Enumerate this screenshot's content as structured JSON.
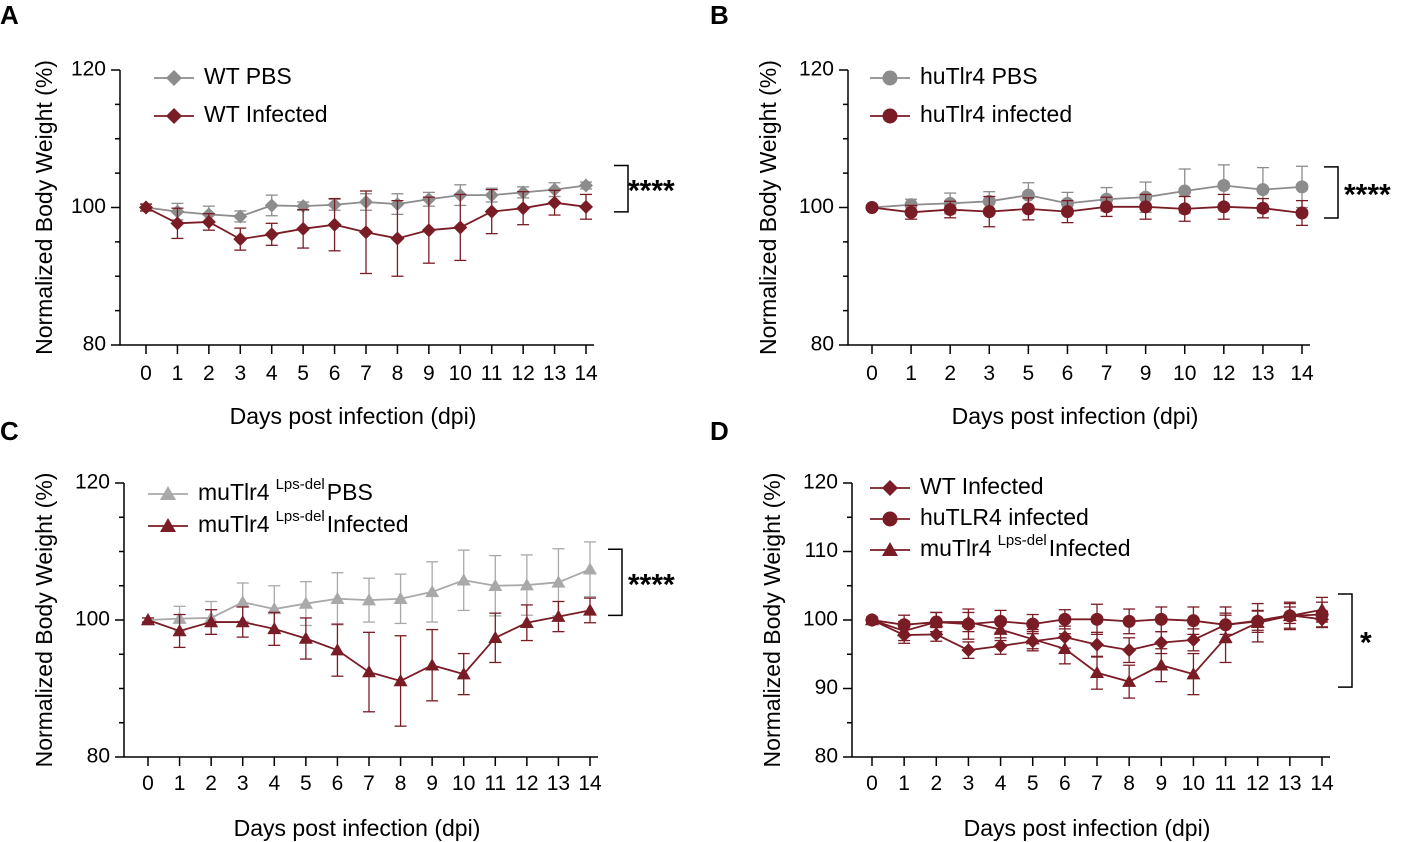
{
  "colors": {
    "gray_dark": "#8c8c8c",
    "gray_light": "#a9a9a9",
    "maroon": "#7a1c25",
    "axis": "#000000"
  },
  "chart_data": [
    {
      "panel": "A",
      "type": "line",
      "xlabel": "Days post infection (dpi)",
      "ylabel": "Normalized Body Weight (%)",
      "ylim": [
        80,
        120
      ],
      "yticks": [
        80,
        100,
        120
      ],
      "categories": [
        "0",
        "1",
        "2",
        "3",
        "4",
        "5",
        "6",
        "7",
        "8",
        "9",
        "10",
        "11",
        "12",
        "13",
        "14"
      ],
      "significance": "****",
      "legend_position": "top-left",
      "series": [
        {
          "name": "WT PBS",
          "marker": "diamond",
          "color": "#8c8c8c",
          "values": [
            100.0,
            99.4,
            99.0,
            98.7,
            100.3,
            100.2,
            100.4,
            100.8,
            100.5,
            101.2,
            101.8,
            101.8,
            102.2,
            102.6,
            103.2
          ],
          "errors": [
            0.5,
            1.2,
            1.2,
            0.8,
            1.5,
            0.6,
            0.8,
            1.2,
            1.5,
            1.0,
            1.5,
            1.0,
            0.8,
            1.0,
            0.5
          ]
        },
        {
          "name": "WT Infected",
          "marker": "diamond",
          "color": "#7a1c25",
          "values": [
            100.0,
            97.7,
            97.9,
            95.4,
            96.1,
            96.9,
            97.5,
            96.4,
            95.5,
            96.7,
            97.1,
            99.4,
            99.9,
            100.7,
            100.1
          ],
          "errors": [
            0.5,
            2.2,
            1.2,
            1.6,
            1.6,
            2.8,
            3.8,
            6.0,
            5.5,
            4.8,
            4.8,
            3.2,
            2.4,
            1.8,
            1.8
          ]
        }
      ]
    },
    {
      "panel": "B",
      "type": "line",
      "xlabel": "Days post infection (dpi)",
      "ylabel": "Normalized Body Weight (%)",
      "ylim": [
        80,
        120
      ],
      "yticks": [
        80,
        100,
        120
      ],
      "categories": [
        "0",
        "1",
        "2",
        "3",
        "5",
        "6",
        "7",
        "9",
        "10",
        "12",
        "13",
        "14"
      ],
      "significance": "****",
      "legend_position": "top-left",
      "series": [
        {
          "name": "huTlr4 PBS",
          "marker": "circle",
          "color": "#8c8c8c",
          "values": [
            100.0,
            100.4,
            100.6,
            100.9,
            101.8,
            100.6,
            101.2,
            101.5,
            102.4,
            103.2,
            102.6,
            103.0
          ],
          "errors": [
            0.3,
            0.8,
            1.5,
            1.4,
            1.8,
            1.6,
            1.7,
            2.2,
            3.2,
            3.0,
            3.2,
            3.0
          ]
        },
        {
          "name": "huTlr4 infected",
          "marker": "circle",
          "color": "#7a1c25",
          "values": [
            100.0,
            99.3,
            99.7,
            99.4,
            99.8,
            99.4,
            100.1,
            100.1,
            99.8,
            100.1,
            99.9,
            99.2
          ],
          "errors": [
            0.3,
            1.0,
            1.2,
            2.2,
            1.6,
            1.6,
            1.4,
            1.8,
            1.8,
            1.8,
            1.4,
            1.8
          ]
        }
      ]
    },
    {
      "panel": "C",
      "type": "line",
      "xlabel": "Days post infection (dpi)",
      "ylabel": "Normalized Body Weight (%)",
      "ylim": [
        80,
        120
      ],
      "yticks": [
        80,
        100,
        120
      ],
      "categories": [
        "0",
        "1",
        "2",
        "3",
        "4",
        "5",
        "6",
        "7",
        "8",
        "9",
        "10",
        "11",
        "12",
        "13",
        "14"
      ],
      "significance": "****",
      "legend_position": "top-left",
      "series": [
        {
          "name": "muTlr4",
          "name_sup": "Lps-del",
          "name_suffix": "PBS",
          "marker": "triangle",
          "color": "#a9a9a9",
          "values": [
            100.0,
            100.2,
            100.3,
            102.6,
            101.6,
            102.4,
            103.1,
            102.9,
            103.1,
            104.1,
            105.8,
            105.0,
            105.1,
            105.5,
            107.4
          ],
          "errors": [
            0.3,
            1.8,
            2.4,
            2.8,
            3.4,
            3.2,
            3.8,
            3.2,
            3.6,
            4.4,
            4.4,
            4.4,
            4.4,
            4.9,
            4.0
          ]
        },
        {
          "name": "muTlr4",
          "name_sup": "Lps-del",
          "name_suffix": "Infected",
          "marker": "triangle",
          "color": "#7a1c25",
          "values": [
            100.0,
            98.4,
            99.7,
            99.7,
            98.7,
            97.3,
            95.6,
            92.4,
            91.1,
            93.4,
            92.1,
            97.4,
            99.6,
            100.5,
            101.4
          ],
          "errors": [
            0.3,
            2.4,
            1.8,
            2.2,
            2.4,
            3.0,
            3.8,
            5.8,
            6.6,
            5.2,
            3.0,
            3.6,
            2.6,
            2.2,
            1.8
          ]
        }
      ]
    },
    {
      "panel": "D",
      "type": "line",
      "xlabel": "Days post infection (dpi)",
      "ylabel": "Normalized Body Weight (%)",
      "ylim": [
        80,
        120
      ],
      "yticks": [
        80,
        90,
        100,
        110,
        120
      ],
      "categories": [
        "0",
        "1",
        "2",
        "3",
        "4",
        "5",
        "6",
        "7",
        "8",
        "9",
        "10",
        "11",
        "12",
        "13",
        "14"
      ],
      "significance": "*",
      "legend_position": "top-left",
      "series": [
        {
          "name": "WT Infected",
          "marker": "diamond",
          "color": "#7a1c25",
          "values": [
            100.0,
            97.8,
            97.9,
            95.6,
            96.2,
            96.9,
            97.5,
            96.4,
            95.6,
            96.7,
            97.1,
            99.3,
            99.9,
            100.7,
            100.1
          ],
          "errors": [
            0.4,
            1.2,
            1.0,
            1.2,
            1.2,
            1.4,
            1.6,
            1.8,
            1.8,
            1.6,
            1.6,
            1.4,
            1.4,
            1.2,
            1.2
          ]
        },
        {
          "name": "huTLR4 infected",
          "marker": "circle",
          "color": "#7a1c25",
          "values": [
            100.0,
            99.3,
            99.7,
            99.4,
            99.8,
            99.4,
            100.1,
            100.1,
            99.8,
            100.1,
            99.9,
            99.3,
            99.8,
            100.6,
            100.8
          ],
          "errors": [
            0.4,
            1.4,
            1.4,
            2.2,
            1.6,
            1.4,
            1.4,
            2.2,
            1.8,
            1.8,
            2.0,
            2.6,
            1.6,
            1.8,
            1.8
          ]
        },
        {
          "name": "muTlr4",
          "name_sup": "Lps-del",
          "name_suffix": "Infected",
          "marker": "triangle",
          "color": "#7a1c25",
          "values": [
            100.0,
            98.4,
            99.7,
            99.7,
            98.6,
            97.2,
            95.8,
            92.3,
            91.0,
            93.4,
            92.1,
            97.4,
            99.6,
            100.6,
            101.5
          ],
          "errors": [
            0.4,
            1.4,
            1.4,
            1.4,
            1.6,
            1.4,
            2.2,
            2.4,
            2.4,
            2.4,
            3.0,
            3.6,
            2.8,
            2.0,
            1.8
          ]
        }
      ]
    }
  ]
}
